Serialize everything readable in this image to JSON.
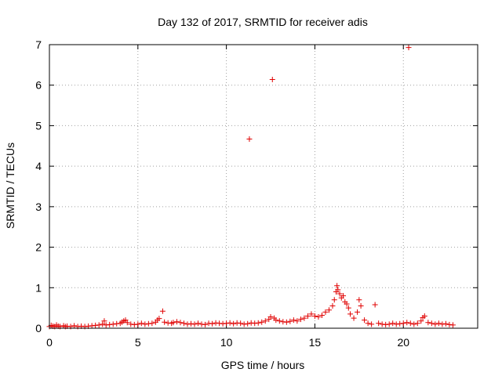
{
  "chart_data": {
    "type": "scatter",
    "title": "Day 132 of 2017, SRMTID for receiver adis",
    "xlabel": "GPS time / hours",
    "ylabel": "SRMTID / TECUs",
    "xlim": [
      0,
      24.2
    ],
    "ylim": [
      0,
      7
    ],
    "x_ticks": [
      0,
      5,
      10,
      15,
      20
    ],
    "y_ticks": [
      0,
      1,
      2,
      3,
      4,
      5,
      6,
      7
    ],
    "grid": true,
    "marker": "+",
    "colors": {
      "series": "#e00000",
      "axis": "#000000",
      "grid": "#a0a0a0"
    },
    "series": [
      {
        "points": [
          [
            0.0,
            0.04
          ],
          [
            0.1,
            0.07
          ],
          [
            0.2,
            0.05
          ],
          [
            0.3,
            0.04
          ],
          [
            0.4,
            0.08
          ],
          [
            0.5,
            0.05
          ],
          [
            0.6,
            0.04
          ],
          [
            0.8,
            0.06
          ],
          [
            0.9,
            0.04
          ],
          [
            1.0,
            0.05
          ],
          [
            1.2,
            0.04
          ],
          [
            1.4,
            0.06
          ],
          [
            1.6,
            0.04
          ],
          [
            1.8,
            0.05
          ],
          [
            2.0,
            0.04
          ],
          [
            2.2,
            0.05
          ],
          [
            2.4,
            0.06
          ],
          [
            2.6,
            0.07
          ],
          [
            2.8,
            0.08
          ],
          [
            3.0,
            0.1
          ],
          [
            3.1,
            0.18
          ],
          [
            3.2,
            0.08
          ],
          [
            3.4,
            0.09
          ],
          [
            3.6,
            0.1
          ],
          [
            3.8,
            0.11
          ],
          [
            4.0,
            0.12
          ],
          [
            4.1,
            0.15
          ],
          [
            4.2,
            0.18
          ],
          [
            4.3,
            0.2
          ],
          [
            4.4,
            0.14
          ],
          [
            4.6,
            0.1
          ],
          [
            4.8,
            0.09
          ],
          [
            5.0,
            0.1
          ],
          [
            5.2,
            0.12
          ],
          [
            5.4,
            0.1
          ],
          [
            5.6,
            0.11
          ],
          [
            5.8,
            0.12
          ],
          [
            6.0,
            0.15
          ],
          [
            6.1,
            0.2
          ],
          [
            6.2,
            0.24
          ],
          [
            6.4,
            0.42
          ],
          [
            6.5,
            0.15
          ],
          [
            6.7,
            0.13
          ],
          [
            6.9,
            0.12
          ],
          [
            7.0,
            0.14
          ],
          [
            7.2,
            0.16
          ],
          [
            7.4,
            0.14
          ],
          [
            7.6,
            0.12
          ],
          [
            7.8,
            0.1
          ],
          [
            8.0,
            0.11
          ],
          [
            8.2,
            0.1
          ],
          [
            8.4,
            0.12
          ],
          [
            8.6,
            0.1
          ],
          [
            8.8,
            0.09
          ],
          [
            9.0,
            0.12
          ],
          [
            9.2,
            0.11
          ],
          [
            9.4,
            0.13
          ],
          [
            9.6,
            0.12
          ],
          [
            9.8,
            0.11
          ],
          [
            10.0,
            0.12
          ],
          [
            10.2,
            0.13
          ],
          [
            10.4,
            0.11
          ],
          [
            10.6,
            0.13
          ],
          [
            10.8,
            0.12
          ],
          [
            11.0,
            0.1
          ],
          [
            11.2,
            0.11
          ],
          [
            11.3,
            4.67
          ],
          [
            11.4,
            0.13
          ],
          [
            11.6,
            0.12
          ],
          [
            11.8,
            0.13
          ],
          [
            12.0,
            0.15
          ],
          [
            12.2,
            0.18
          ],
          [
            12.4,
            0.22
          ],
          [
            12.5,
            0.28
          ],
          [
            12.6,
            6.14
          ],
          [
            12.7,
            0.25
          ],
          [
            12.8,
            0.2
          ],
          [
            13.0,
            0.18
          ],
          [
            13.2,
            0.16
          ],
          [
            13.4,
            0.15
          ],
          [
            13.6,
            0.17
          ],
          [
            13.8,
            0.2
          ],
          [
            14.0,
            0.18
          ],
          [
            14.2,
            0.22
          ],
          [
            14.4,
            0.25
          ],
          [
            14.6,
            0.3
          ],
          [
            14.8,
            0.35
          ],
          [
            15.0,
            0.3
          ],
          [
            15.2,
            0.28
          ],
          [
            15.4,
            0.32
          ],
          [
            15.6,
            0.4
          ],
          [
            15.8,
            0.45
          ],
          [
            16.0,
            0.55
          ],
          [
            16.1,
            0.7
          ],
          [
            16.2,
            0.9
          ],
          [
            16.25,
            1.05
          ],
          [
            16.3,
            0.95
          ],
          [
            16.4,
            0.85
          ],
          [
            16.5,
            0.75
          ],
          [
            16.6,
            0.8
          ],
          [
            16.7,
            0.65
          ],
          [
            16.8,
            0.6
          ],
          [
            16.9,
            0.5
          ],
          [
            17.0,
            0.35
          ],
          [
            17.2,
            0.25
          ],
          [
            17.4,
            0.4
          ],
          [
            17.5,
            0.7
          ],
          [
            17.6,
            0.55
          ],
          [
            17.8,
            0.2
          ],
          [
            18.0,
            0.12
          ],
          [
            18.2,
            0.1
          ],
          [
            18.4,
            0.58
          ],
          [
            18.6,
            0.12
          ],
          [
            18.8,
            0.1
          ],
          [
            19.0,
            0.09
          ],
          [
            19.2,
            0.1
          ],
          [
            19.4,
            0.12
          ],
          [
            19.6,
            0.1
          ],
          [
            19.8,
            0.11
          ],
          [
            20.0,
            0.12
          ],
          [
            20.2,
            0.14
          ],
          [
            20.3,
            6.93
          ],
          [
            20.4,
            0.12
          ],
          [
            20.6,
            0.1
          ],
          [
            20.8,
            0.12
          ],
          [
            21.0,
            0.18
          ],
          [
            21.1,
            0.26
          ],
          [
            21.2,
            0.3
          ],
          [
            21.4,
            0.14
          ],
          [
            21.6,
            0.12
          ],
          [
            21.8,
            0.1
          ],
          [
            22.0,
            0.12
          ],
          [
            22.2,
            0.1
          ],
          [
            22.4,
            0.11
          ],
          [
            22.6,
            0.09
          ],
          [
            22.8,
            0.08
          ]
        ]
      }
    ]
  }
}
